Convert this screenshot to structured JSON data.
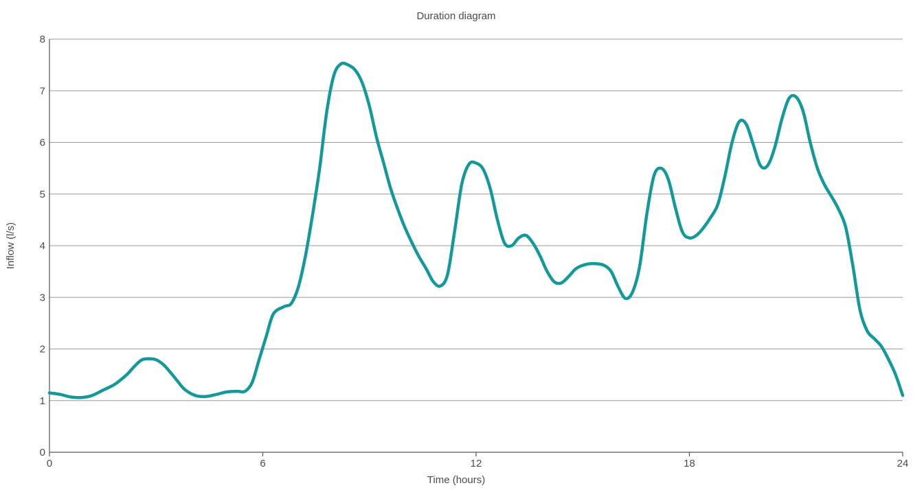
{
  "chart_data": {
    "type": "line",
    "title": "Duration diagram",
    "xlabel": "Time (hours)",
    "ylabel": "Inflow (l/s)",
    "xlim": [
      0,
      24
    ],
    "ylim": [
      0,
      8
    ],
    "x_ticks": [
      "0",
      "6",
      "12",
      "18",
      "24"
    ],
    "y_ticks": [
      "0",
      "1",
      "2",
      "3",
      "4",
      "5",
      "6",
      "7",
      "8"
    ],
    "grid": "horizontal",
    "line_color": "#14999a",
    "series": [
      {
        "x": [
          0,
          0.3,
          0.6,
          0.9,
          1.2,
          1.5,
          1.8,
          2.0,
          2.2,
          2.4,
          2.6,
          2.8,
          3.0,
          3.2,
          3.4,
          3.6,
          3.8,
          4.1,
          4.4,
          4.7,
          5.0,
          5.3,
          5.5,
          5.7,
          5.9,
          6.1,
          6.3,
          6.6,
          6.8,
          7.0,
          7.2,
          7.4,
          7.6,
          7.8,
          8.0,
          8.2,
          8.4,
          8.6,
          8.8,
          9.0,
          9.2,
          9.4,
          9.6,
          9.8,
          10.0,
          10.2,
          10.4,
          10.6,
          10.8,
          11.0,
          11.2,
          11.4,
          11.6,
          11.8,
          12.0,
          12.2,
          12.4,
          12.6,
          12.8,
          13.0,
          13.2,
          13.4,
          13.6,
          13.8,
          14.0,
          14.2,
          14.4,
          14.6,
          14.8,
          15.0,
          15.2,
          15.4,
          15.6,
          15.8,
          16.0,
          16.2,
          16.4,
          16.6,
          16.8,
          17.0,
          17.2,
          17.4,
          17.6,
          17.8,
          18.0,
          18.2,
          18.4,
          18.6,
          18.8,
          19.0,
          19.2,
          19.4,
          19.6,
          19.8,
          20.0,
          20.2,
          20.4,
          20.6,
          20.8,
          21.0,
          21.2,
          21.4,
          21.6,
          21.8,
          22.0,
          22.2,
          22.4,
          22.6,
          22.8,
          23.0,
          23.2,
          23.4,
          23.6,
          23.8,
          24.0
        ],
        "y": [
          1.15,
          1.12,
          1.07,
          1.06,
          1.1,
          1.2,
          1.3,
          1.4,
          1.52,
          1.67,
          1.79,
          1.81,
          1.79,
          1.7,
          1.55,
          1.38,
          1.22,
          1.1,
          1.08,
          1.12,
          1.17,
          1.18,
          1.18,
          1.35,
          1.8,
          2.25,
          2.68,
          2.82,
          2.88,
          3.2,
          3.8,
          4.6,
          5.5,
          6.6,
          7.3,
          7.52,
          7.5,
          7.4,
          7.15,
          6.7,
          6.1,
          5.6,
          5.1,
          4.7,
          4.35,
          4.05,
          3.78,
          3.55,
          3.3,
          3.22,
          3.45,
          4.3,
          5.2,
          5.58,
          5.6,
          5.48,
          5.1,
          4.5,
          4.05,
          4.0,
          4.15,
          4.2,
          4.05,
          3.8,
          3.5,
          3.3,
          3.28,
          3.4,
          3.55,
          3.62,
          3.65,
          3.65,
          3.62,
          3.5,
          3.2,
          2.98,
          3.1,
          3.6,
          4.6,
          5.35,
          5.5,
          5.3,
          4.75,
          4.27,
          4.15,
          4.2,
          4.35,
          4.55,
          4.8,
          5.35,
          6.0,
          6.4,
          6.35,
          5.95,
          5.55,
          5.55,
          5.9,
          6.45,
          6.85,
          6.88,
          6.6,
          6.0,
          5.5,
          5.18,
          4.95,
          4.7,
          4.35,
          3.6,
          2.75,
          2.35,
          2.2,
          2.05,
          1.8,
          1.5,
          1.1
        ]
      }
    ]
  }
}
